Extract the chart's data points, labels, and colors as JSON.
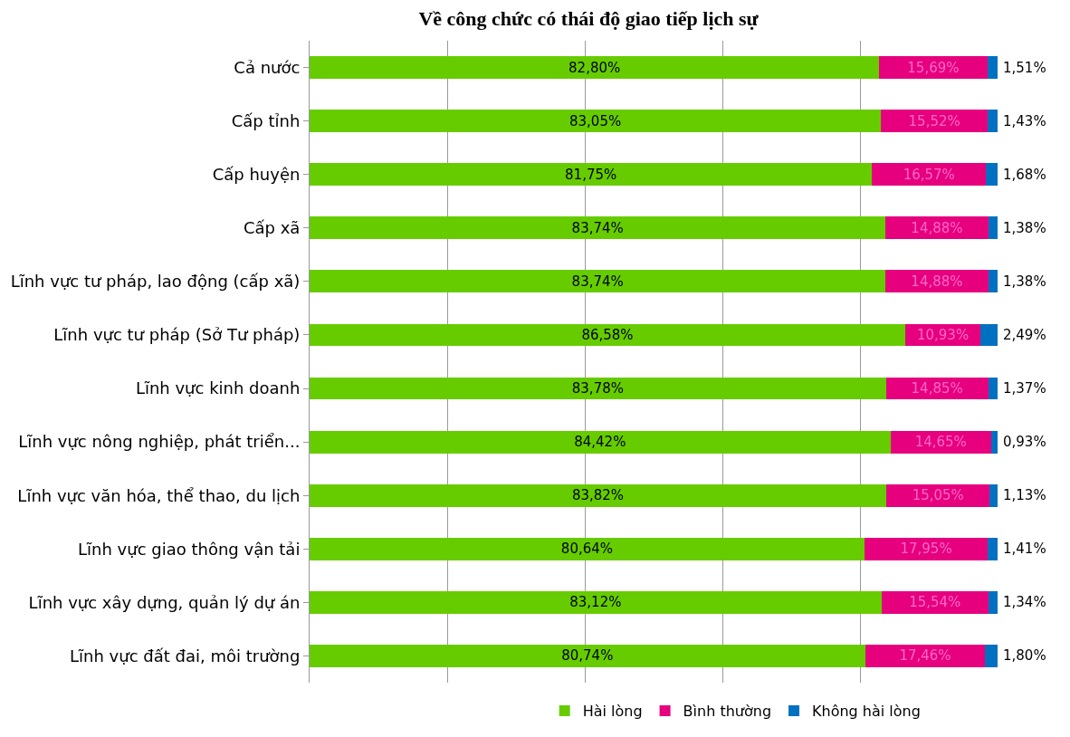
{
  "chart_data": {
    "type": "bar",
    "orientation": "horizontal",
    "stacked": true,
    "title": "Về công chức có thái độ giao tiếp lịch sự",
    "categories": [
      "Cả nước",
      "Cấp tỉnh",
      "Cấp huyện",
      "Cấp xã",
      "Lĩnh vực tư pháp, lao động (cấp xã)",
      "Lĩnh vực tư pháp (Sở Tư pháp)",
      "Lĩnh vực kinh doanh",
      "Lĩnh vực nông nghiệp, phát triển...",
      "Lĩnh vực văn hóa, thể thao, du lịch",
      "Lĩnh vực giao thông vận tải",
      "Lĩnh vực xây dựng, quản lý dự án",
      "Lĩnh vực đất đai, môi trường"
    ],
    "series": [
      {
        "name": "Hài lòng",
        "color": "#66cc00",
        "values": [
          82.8,
          83.05,
          81.75,
          83.74,
          83.74,
          86.58,
          83.78,
          84.42,
          83.82,
          80.64,
          83.12,
          80.74
        ],
        "value_labels": [
          "82,80%",
          "83,05%",
          "81,75%",
          "83,74%",
          "83,74%",
          "86,58%",
          "83,78%",
          "84,42%",
          "83,82%",
          "80,64%",
          "83,12%",
          "80,74%"
        ]
      },
      {
        "name": "Bình thường",
        "color": "#e6007e",
        "values": [
          15.69,
          15.52,
          16.57,
          14.88,
          14.88,
          10.93,
          14.85,
          14.65,
          15.05,
          17.95,
          15.54,
          17.46
        ],
        "value_labels": [
          "15,69%",
          "15,52%",
          "16,57%",
          "14,88%",
          "14,88%",
          "10,93%",
          "14,85%",
          "14,65%",
          "15,05%",
          "17,95%",
          "15,54%",
          "17,46%"
        ]
      },
      {
        "name": "Không hài lòng",
        "color": "#0070c0",
        "values": [
          1.51,
          1.43,
          1.68,
          1.38,
          1.38,
          2.49,
          1.37,
          0.93,
          1.13,
          1.41,
          1.34,
          1.8
        ],
        "value_labels": [
          "1,51%",
          "1,43%",
          "1,68%",
          "1,38%",
          "1,38%",
          "2,49%",
          "1,37%",
          "0,93%",
          "1,13%",
          "1,41%",
          "1,34%",
          "1,80%"
        ]
      }
    ],
    "xlim": [
      0,
      100
    ],
    "grid": "x",
    "tick_labels": "y",
    "legend": "bottom"
  }
}
